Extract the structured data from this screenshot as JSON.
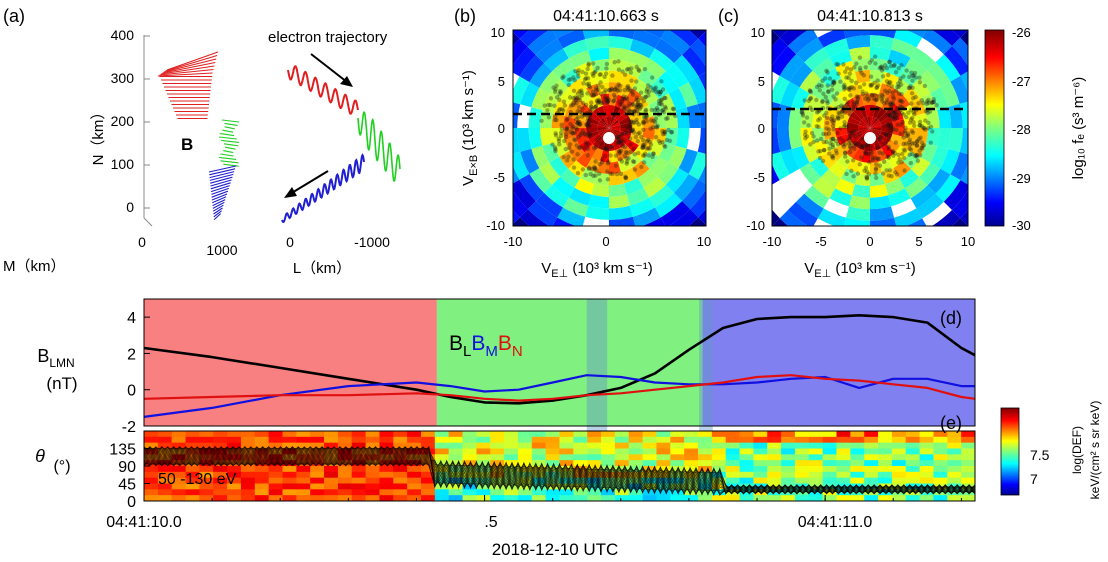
{
  "panel_labels": {
    "a": "(a)",
    "b": "(b)",
    "c": "(c)",
    "d": "(d)",
    "e": "(e)"
  },
  "panel_a": {
    "b_label": "B",
    "trajectory_label": "electron trajectory",
    "n_axis_label": "N（km）",
    "l_axis_label": "L（km）",
    "m_axis_label": "M（km）",
    "n_ticks": [
      "400",
      "300",
      "200",
      "100",
      "0"
    ],
    "m_ticks": [
      "0",
      "1000"
    ],
    "l_ticks": [
      "0",
      "-1000"
    ],
    "colors": {
      "red": "#e02020",
      "green": "#20d020",
      "blue": "#2020d0"
    }
  },
  "panel_b": {
    "title": "04:41:10.663 s",
    "xlabel_main": "V",
    "xlabel_sub": "E⊥",
    "xlabel_rest": " (10³ km s⁻¹)",
    "ylabel_main": "V",
    "ylabel_sub": "E×B",
    "ylabel_rest": " (10³ km s⁻¹)",
    "x_ticks": [
      "-10",
      "0",
      "10"
    ],
    "y_ticks": [
      "10",
      "5",
      "0",
      "-5",
      "-10"
    ],
    "dashed_line_y": 1.5
  },
  "panel_c": {
    "title": "04:41:10.813 s",
    "xlabel_main": "V",
    "xlabel_sub": "E⊥",
    "xlabel_rest": " (10³ km s⁻¹)",
    "x_ticks": [
      "-10",
      "-5",
      "0",
      "5",
      "10"
    ],
    "y_ticks": [
      "10",
      "5",
      "0",
      "-5",
      "-10"
    ],
    "dashed_line_y": 2
  },
  "colorbar_fe": {
    "label": "log₁₀ fₑ (s³ m⁻⁶)",
    "ticks": [
      "-26",
      "-27",
      "-28",
      "-29",
      "-30"
    ]
  },
  "colorbar_def": {
    "label_line1": "log(DEF)",
    "label_line2": "keV/(cm² s sr keV)",
    "ticks": [
      "7.5",
      "7"
    ]
  },
  "chart_data": [
    {
      "type": "line",
      "panel": "d",
      "title": "",
      "ylabel": "B_LMN (nT)",
      "ylabel_line1": "B",
      "ylabel_sub": "LMN",
      "ylabel_line2": "(nT)",
      "ylim": [
        -2,
        5
      ],
      "xlim": [
        0,
        1.22
      ],
      "y_ticks": [
        "4",
        "2",
        "0",
        "-2"
      ],
      "legend": {
        "BL": "B",
        "BL_sub": "L",
        "BM": "B",
        "BM_sub": "M",
        "BN": "B",
        "BN_sub": "N"
      },
      "x": [
        0.0,
        0.1,
        0.2,
        0.3,
        0.4,
        0.45,
        0.5,
        0.55,
        0.6,
        0.65,
        0.7,
        0.75,
        0.8,
        0.85,
        0.9,
        0.95,
        1.0,
        1.05,
        1.1,
        1.15,
        1.2,
        1.22
      ],
      "series": [
        {
          "name": "B_L",
          "color": "#000000",
          "values": [
            2.3,
            1.8,
            1.2,
            0.6,
            0.0,
            -0.4,
            -0.7,
            -0.75,
            -0.6,
            -0.3,
            0.1,
            0.9,
            2.2,
            3.4,
            3.9,
            4.0,
            4.0,
            4.1,
            4.0,
            3.7,
            2.3,
            1.9
          ]
        },
        {
          "name": "B_M",
          "color": "#1010e0",
          "values": [
            -1.5,
            -1.0,
            -0.3,
            0.2,
            0.4,
            0.2,
            -0.1,
            0.0,
            0.4,
            0.8,
            0.7,
            0.4,
            0.3,
            0.3,
            0.4,
            0.6,
            0.7,
            0.1,
            0.6,
            0.6,
            0.2,
            0.2
          ]
        },
        {
          "name": "B_N",
          "color": "#e01010",
          "values": [
            -0.5,
            -0.4,
            -0.3,
            -0.3,
            -0.2,
            -0.3,
            -0.5,
            -0.6,
            -0.5,
            -0.3,
            -0.2,
            0.0,
            0.2,
            0.4,
            0.7,
            0.8,
            0.6,
            0.5,
            0.3,
            0.1,
            -0.4,
            -0.5
          ]
        }
      ],
      "regions": [
        {
          "from": 0.0,
          "to": 0.43,
          "color": "#f88080"
        },
        {
          "from": 0.43,
          "to": 0.82,
          "color": "#80f080"
        },
        {
          "from": 0.82,
          "to": 1.22,
          "color": "#8080f0"
        }
      ],
      "highlight_bands": [
        [
          0.65,
          0.68
        ],
        [
          0.815,
          0.835
        ]
      ]
    },
    {
      "type": "heatmap",
      "panel": "e",
      "ylabel_line1": "θ",
      "ylabel_line2": "(°)",
      "ylim": [
        0,
        180
      ],
      "xlim": [
        0,
        1.22
      ],
      "y_ticks": [
        "135",
        "90",
        "45",
        "0"
      ],
      "annotation": "50 -130 eV",
      "x_tick_labels": [
        "04:41:10.0",
        ".5",
        "04:41:11.0"
      ],
      "xlabel": "2018-12-10 UTC"
    }
  ]
}
